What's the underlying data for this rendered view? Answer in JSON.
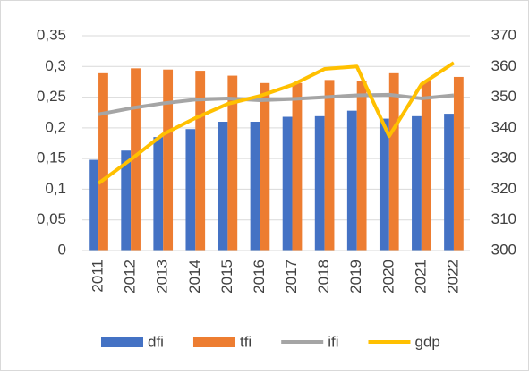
{
  "chart_data": {
    "type": "bar",
    "categories": [
      "2011",
      "2012",
      "2013",
      "2014",
      "2015",
      "2016",
      "2017",
      "2018",
      "2019",
      "2020",
      "2021",
      "2022"
    ],
    "series": [
      {
        "name": "dfi",
        "type": "bar",
        "color": "#4472c4",
        "values": [
          0.148,
          0.163,
          0.185,
          0.198,
          0.21,
          0.21,
          0.218,
          0.219,
          0.228,
          0.215,
          0.219,
          0.223
        ]
      },
      {
        "name": "tfi",
        "type": "bar",
        "color": "#ed7d31",
        "values": [
          0.289,
          0.297,
          0.295,
          0.293,
          0.285,
          0.273,
          0.273,
          0.278,
          0.277,
          0.289,
          0.276,
          0.283
        ]
      },
      {
        "name": "ifi",
        "type": "line",
        "color": "#a5a5a5",
        "values": [
          0.222,
          0.232,
          0.24,
          0.246,
          0.248,
          0.245,
          0.247,
          0.25,
          0.253,
          0.254,
          0.248,
          0.253
        ]
      },
      {
        "name": "gdp",
        "type": "line",
        "axis": "y2",
        "color": "#ffc000",
        "values": [
          321.9,
          329.7,
          337.9,
          343.2,
          347.8,
          350.4,
          354,
          359.2,
          360,
          337.3,
          354.2,
          361.2
        ]
      }
    ],
    "ylim": [
      0,
      0.35
    ],
    "yticks": [
      0,
      {
        "value": 0.05,
        "label": "0,05"
      },
      {
        "value": 0.1,
        "label": "0,1"
      },
      {
        "value": 0.15,
        "label": "0,15"
      },
      {
        "value": 0.2,
        "label": "0,2"
      },
      {
        "value": 0.25,
        "label": "0,25"
      },
      {
        "value": 0.3,
        "label": "0,3"
      },
      {
        "value": 0.35,
        "label": "0,35"
      }
    ],
    "y2lim": [
      300,
      370
    ],
    "y2ticks": [
      300,
      310,
      320,
      330,
      340,
      350,
      360,
      370
    ],
    "grid": true,
    "legend": "bottom"
  }
}
